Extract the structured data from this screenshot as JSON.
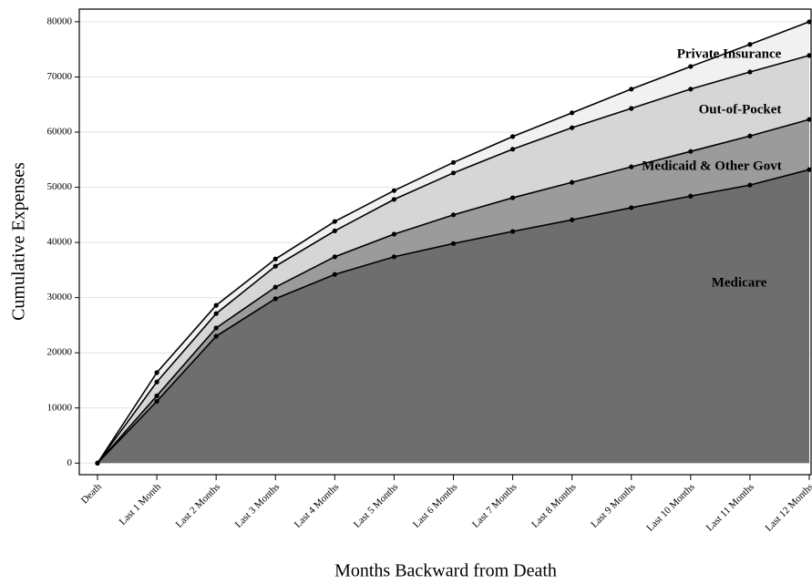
{
  "chart_data": {
    "type": "stacked_area",
    "x_label": "Months Backward from Death",
    "y_label": "Cumulative Expenses",
    "categories": [
      "Death",
      "Last 1 Month",
      "Last 2 Months",
      "Last 3 Months",
      "Last 4 Months",
      "Last 5 Months",
      "Last 6 Months",
      "Last 7 Months",
      "Last 8 Months",
      "Last 9 Months",
      "Last 10 Months",
      "Last 11 Months",
      "Last 12 Months"
    ],
    "series": [
      {
        "name": "Medicare",
        "color": "#6e6e6e",
        "values": [
          0,
          11200,
          23000,
          29800,
          34200,
          37400,
          39800,
          42000,
          44100,
          46300,
          48400,
          50400,
          53200
        ]
      },
      {
        "name": "Medicaid & Other Govt",
        "color": "#9b9b9b",
        "values": [
          0,
          1000,
          1500,
          2100,
          3200,
          4100,
          5200,
          6100,
          6800,
          7400,
          8100,
          8900,
          9100
        ]
      },
      {
        "name": "Out-of-Pocket",
        "color": "#d6d6d6",
        "values": [
          0,
          2500,
          2600,
          3800,
          4700,
          6300,
          7600,
          8800,
          9900,
          10600,
          11300,
          11600,
          11600
        ]
      },
      {
        "name": "Private Insurance",
        "color": "#f1f1f1",
        "values": [
          0,
          1700,
          1500,
          1300,
          1700,
          1600,
          1900,
          2300,
          2700,
          3500,
          4100,
          5000,
          6100
        ]
      }
    ],
    "ylim": [
      -2100,
      82300
    ],
    "yticks": [
      0,
      10000,
      20000,
      30000,
      40000,
      50000,
      60000,
      70000,
      80000
    ],
    "grid": true
  }
}
